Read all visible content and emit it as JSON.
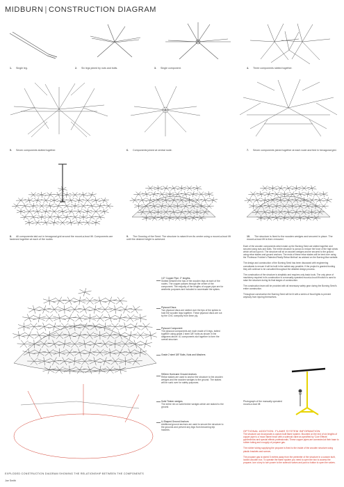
{
  "header": {
    "title_left": "MIDBURN",
    "title_right": "CONSTRUCTION DIAGRAM"
  },
  "steps": [
    {
      "num": "1.",
      "caption": "Single leg."
    },
    {
      "num": "2.",
      "caption": "Six legs joined by nuts and bolts."
    },
    {
      "num": "3.",
      "caption": "Single component."
    },
    {
      "num": "4.",
      "caption": "Three components slotted together."
    },
    {
      "num": "5.",
      "caption": "Seven components slotted together."
    },
    {
      "num": "6.",
      "caption": "Components joined at central node."
    },
    {
      "num": "7.",
      "caption": "Seven components joined together at each node and tied in hexagonal grid."
    },
    {
      "num": "8.",
      "caption": "All components laid out in hexagonal grid around the mount-a-bout lift. Components are fastened together at each of the nodes."
    },
    {
      "num": "9.",
      "caption": "The Growing of the Seed. The structure is raised from its centre using a mount-a-bout lift until the desired height is achieved."
    },
    {
      "num": "10.",
      "caption": "The structure is fixed to the wooden wedges and secured in place. The mount-a-bout lift is then removed."
    }
  ],
  "annotations": [
    {
      "head": "1/2\" Copper Pipe: 2\" lengths.",
      "text": "Slotted between the tips of the wooden legs at each of the nodes. The copper passes through the centre of the component. The majority of the lengths of copper pipe are for aesthetic purposes and included to accentuate the spikes."
    },
    {
      "head": "Plywood Discs",
      "text": "Two plywood discs are slotted over the tips of the spikes to hold the wooden legs together. These plywood discs are cut by the CNC company from 6mm ply."
    },
    {
      "head": "Plywood Component",
      "text": "The plywood components are each made of 6 legs, bolted together using grade 2 steel 3/8\" bolts as shown in the diagrams above. 61 components slot together to form the overall structure."
    },
    {
      "head": "Grade 2 steel 3/8\" Bolts, Nuts and Washers",
      "text": ""
    },
    {
      "head": "900mm Hurricane Ground Anchors",
      "text": "Rebar stakes are used to anchor the structure to the wooden wedges and the wooden wedges to the ground. The stakes will be sunk over for safety purposes."
    },
    {
      "head": "Solid Timber wedges",
      "text": "The entire rim on solid timber wedges which are staked to the ground."
    },
    {
      "head": "U-Shaped Ground Anchors",
      "text": "Additional ground anchors are used to secure the structure to the grounds and prevent any legs from becoming trip hazards."
    }
  ],
  "right_column": {
    "paragraphs": [
      "Each of the wooden components which make up the Burning Seed are slotted together and secured using nuts and bolts. The entire structure is porous to reduce the force of the high winds which will act upon it. The structure will sit on wooden wedges and be secured to the ground using rebar stakes and ground anchors. The ends of these rebar stakes will be bent over using the 'Professor Frobber's Patented Really Rebar Method' as advised on the Burning Man website.",
      "The design and construction of the Burning Seed has been discussed with engineering consultants to ensure it will be built in the safest way possible. If the project is granted funding they will continue to be consulted throughout the detailed design process.",
      "The construction of the structure is simplistic and requires only basic tools. The only piece of machinery required in its construction is a manually operated mount-a-bout lift which is used to raise the structure during its final stages of construction.",
      "The construction team will be provided with all necessary safety gear during the Burning Seed's entire construction.",
      "Throughout construction the Burning Seed will be lit with a series of flood lights to prevent anybody from injuring themselves."
    ],
    "flame_heading": "OPTIONAL ADDITION: FLAME SYSTEM INFORMATION",
    "flame_paragraphs": [
      "The structure can incorporate a custom built flame system. Mounted on the end of six lengths of copper pipe is a 'moon flame head' with a solenoid valve as specified by 'Core Effects' pyrotechnics and special effects professionals. These copper pipes are connected at their base to rubber tubing and a supply of propane gas.",
      "The rubber tubing supplying the propane is fixed to the inside of the wooden structure using plastic brackets and screws.",
      "The propane gas is stored 5 metres away from the perimeter of the structure in a custom built, locked wooden box. To operate the flame system you need to open the box to access the propane, turn a key to turn power to the solenoid valves and push a button to open the valves."
    ]
  },
  "photo_caption": "Photograph of the manually operated mount-a-bout lift",
  "bottom_caption": "EXPLODED CONSTRUCTION DIAGRAM SHOWING THE RELATIONSHIP BETWEEN THE COMPONENTS",
  "author": "Joe Smith",
  "colors": {
    "ink": "#333333",
    "red": "#d23a2a",
    "lift_yellow": "#e8d400"
  }
}
